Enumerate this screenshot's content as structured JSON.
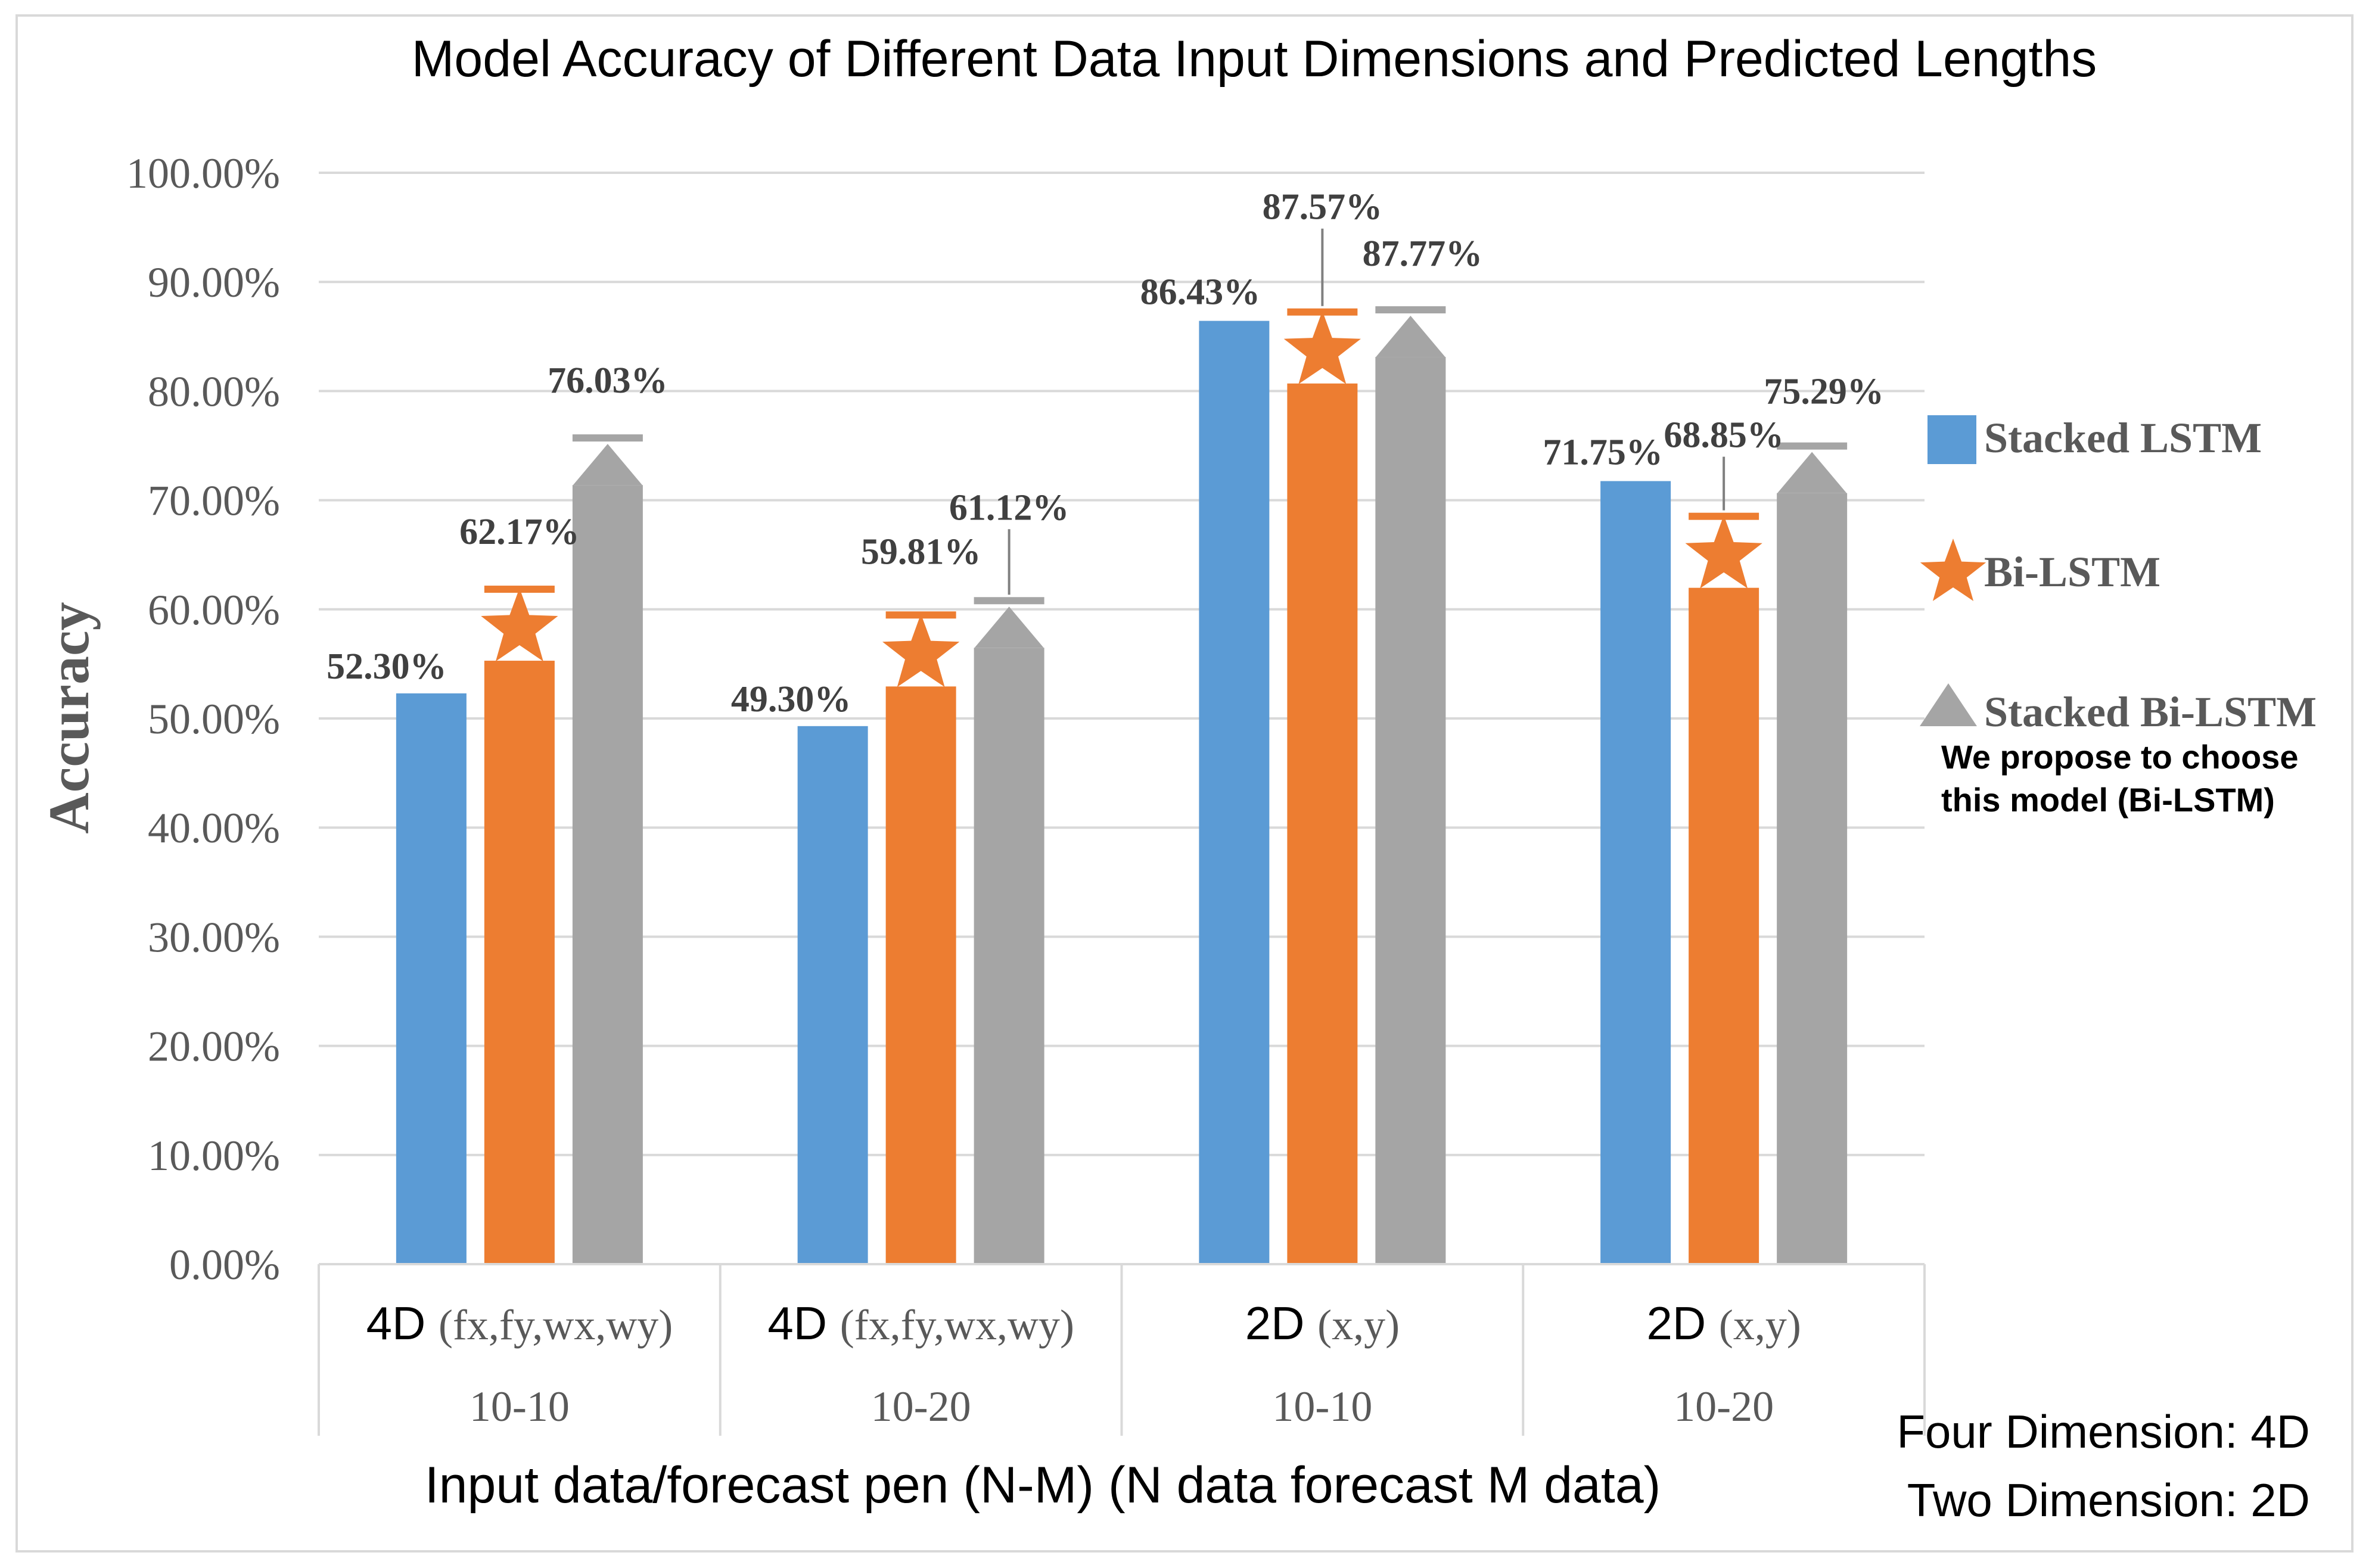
{
  "chart_data": {
    "type": "bar",
    "title": "Model Accuracy of Different Data Input Dimensions and Predicted Lengths",
    "ylabel": "Accuracy",
    "xlabel": "Input data/forecast pen (N-M) (N data forecast M data)",
    "ylim": [
      0,
      100
    ],
    "yticks": [
      "0.00%",
      "10.00%",
      "20.00%",
      "30.00%",
      "40.00%",
      "50.00%",
      "60.00%",
      "70.00%",
      "80.00%",
      "90.00%",
      "100.00%"
    ],
    "categories": [
      {
        "dim": "4D",
        "vars": "(fx,fy,wx,wy)",
        "length": "10-10"
      },
      {
        "dim": "4D",
        "vars": "(fx,fy,wx,wy)",
        "length": "10-20"
      },
      {
        "dim": "2D",
        "vars": "(x,y)",
        "length": "10-10"
      },
      {
        "dim": "2D",
        "vars": "(x,y)",
        "length": "10-20"
      }
    ],
    "series": [
      {
        "name": "Stacked LSTM",
        "color": "#5b9bd5",
        "marker": "square",
        "values": [
          52.3,
          49.3,
          86.43,
          71.75
        ],
        "labels": [
          "52.30%",
          "49.30%",
          "86.43%",
          "71.75%"
        ]
      },
      {
        "name": "Bi-LSTM",
        "color": "#ed7d31",
        "marker": "star",
        "values": [
          62.17,
          59.81,
          87.57,
          68.85
        ],
        "labels": [
          "62.17%",
          "59.81%",
          "87.57%",
          "68.85%"
        ]
      },
      {
        "name": "Stacked Bi-LSTM",
        "color": "#a5a5a5",
        "marker": "triangle",
        "values": [
          76.03,
          61.12,
          87.77,
          75.29
        ],
        "labels": [
          "76.03%",
          "61.12%",
          "87.77%",
          "75.29%"
        ]
      }
    ],
    "legend_position": "right",
    "grid": true
  },
  "annotations": {
    "proposal_line1": "We propose to choose",
    "proposal_line2": "this model (Bi-LSTM)",
    "abbr_4d": "Four Dimension: 4D",
    "abbr_2d": "Two Dimension: 2D"
  }
}
